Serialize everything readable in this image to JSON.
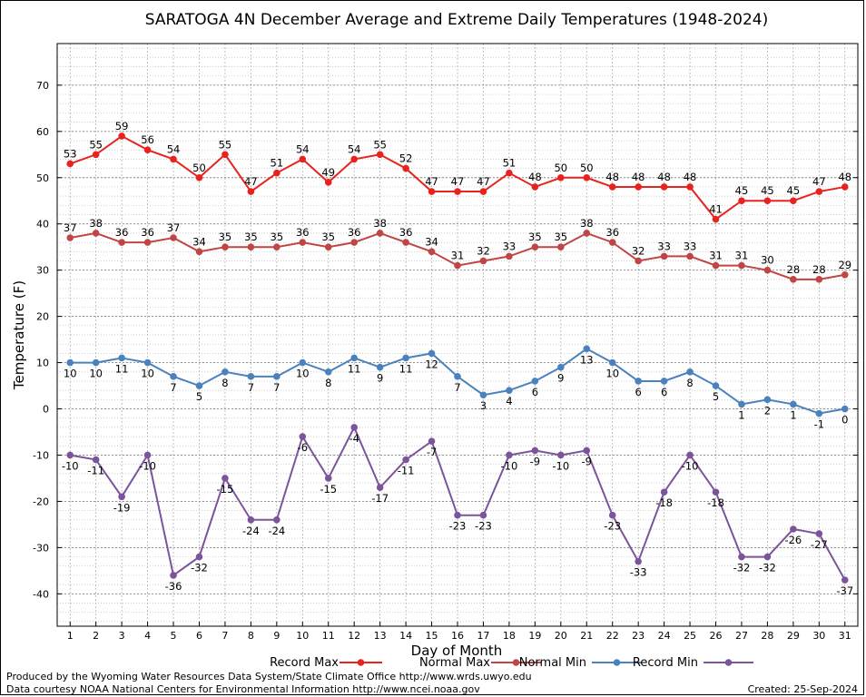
{
  "chart_data": {
    "type": "line",
    "title": "SARATOGA 4N December Average and Extreme Daily Temperatures (1948-2024)",
    "xlabel": "Day of Month",
    "ylabel": "Temperature (F)",
    "x": [
      1,
      2,
      3,
      4,
      5,
      6,
      7,
      8,
      9,
      10,
      11,
      12,
      13,
      14,
      15,
      16,
      17,
      18,
      19,
      20,
      21,
      22,
      23,
      24,
      25,
      26,
      27,
      28,
      29,
      30,
      31
    ],
    "xlim": [
      0.5,
      31.5
    ],
    "ylim": [
      -47,
      79
    ],
    "yticks": [
      -40,
      -30,
      -20,
      -10,
      0,
      10,
      20,
      30,
      40,
      50,
      60,
      70
    ],
    "grid": true,
    "legend_position": "bottom",
    "series": [
      {
        "name": "Record Max",
        "color": "#e8231e",
        "label_position": "above",
        "values": [
          53,
          55,
          59,
          56,
          54,
          50,
          55,
          47,
          51,
          54,
          49,
          54,
          55,
          52,
          47,
          47,
          47,
          51,
          48,
          50,
          50,
          48,
          48,
          48,
          48,
          41,
          45,
          45,
          45,
          47,
          48
        ]
      },
      {
        "name": "Normal Max",
        "color": "#c04545",
        "label_position": "above",
        "values": [
          37,
          38,
          36,
          36,
          37,
          34,
          35,
          35,
          35,
          36,
          35,
          36,
          38,
          36,
          34,
          31,
          32,
          33,
          35,
          35,
          38,
          36,
          32,
          33,
          33,
          31,
          31,
          30,
          28,
          28,
          29
        ]
      },
      {
        "name": "Normal Min",
        "color": "#4a82bd",
        "label_position": "below",
        "values": [
          10,
          10,
          11,
          10,
          7,
          5,
          8,
          7,
          7,
          10,
          8,
          11,
          9,
          11,
          12,
          7,
          3,
          4,
          6,
          9,
          13,
          10,
          6,
          6,
          8,
          5,
          1,
          2,
          1,
          -1,
          0
        ]
      },
      {
        "name": "Record Min",
        "color": "#7b549c",
        "label_position": "below",
        "values": [
          -10,
          -11,
          -19,
          -10,
          -36,
          -32,
          -15,
          -24,
          -24,
          -6,
          -15,
          -4,
          -17,
          -11,
          -7,
          -23,
          -23,
          -10,
          -9,
          -10,
          -9,
          -23,
          -33,
          -18,
          -10,
          -18,
          -32,
          -32,
          -26,
          -27,
          -37
        ]
      }
    ]
  },
  "footer": {
    "producer": "Produced by the Wyoming Water Resources Data System/State Climate Office http://www.wrds.uwyo.edu",
    "source": "Data courtesy NOAA National Centers for Environmental Information http://www.ncei.noaa.gov",
    "created": "Created:  25-Sep-2024"
  }
}
